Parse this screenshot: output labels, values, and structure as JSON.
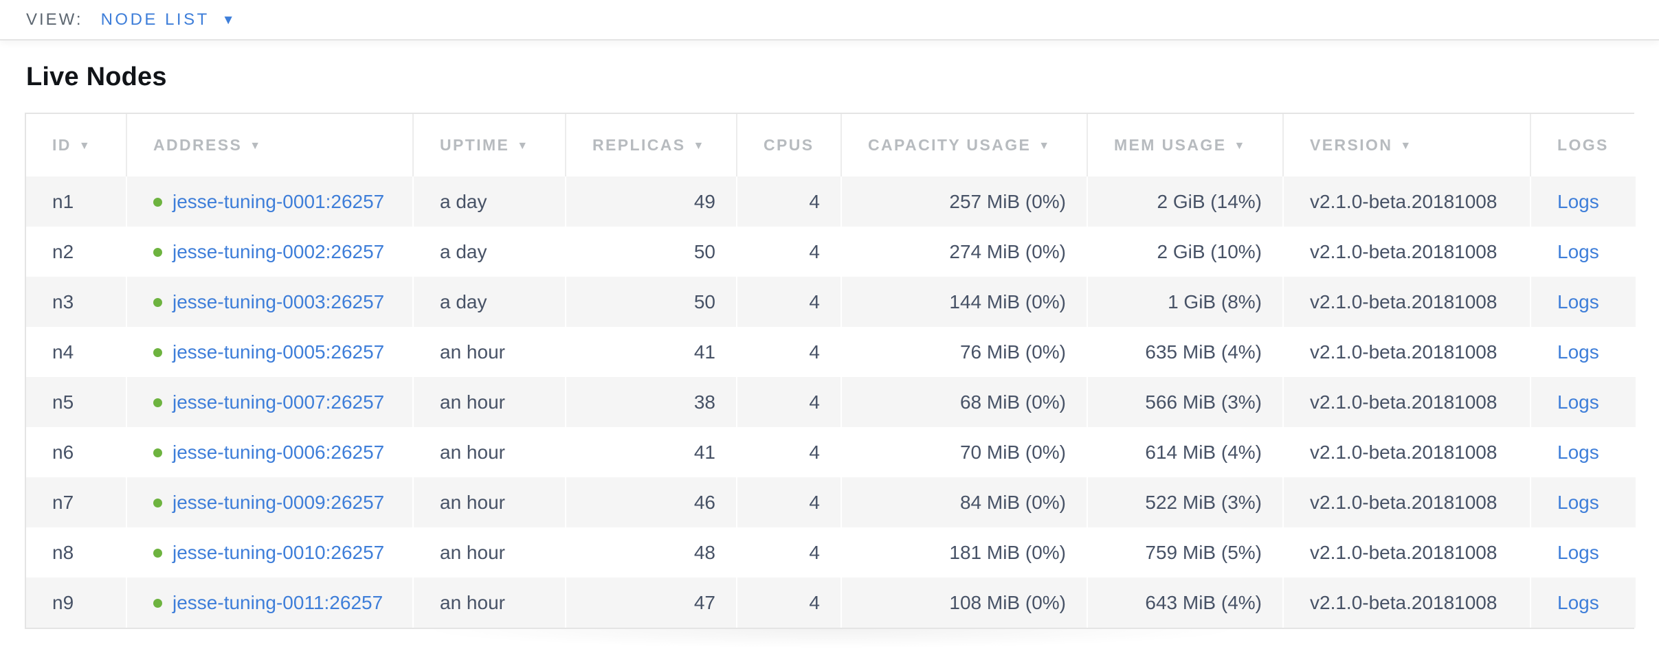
{
  "view_bar": {
    "label": "VIEW:",
    "selected": "NODE LIST"
  },
  "page": {
    "title": "Live Nodes"
  },
  "icons": {
    "sort_desc": "▼",
    "caret_down": "▼"
  },
  "colors": {
    "accent_blue": "#3e7ed9",
    "status_green": "#6db33f",
    "header_gray": "#b7bbbf",
    "cell_text": "#475266",
    "stripe_gray": "#f5f5f5"
  },
  "table": {
    "columns": [
      {
        "key": "id",
        "label": "ID",
        "sortable": true,
        "align": "left",
        "type": "text"
      },
      {
        "key": "address",
        "label": "ADDRESS",
        "sortable": true,
        "align": "left",
        "type": "node-link"
      },
      {
        "key": "uptime",
        "label": "UPTIME",
        "sortable": true,
        "align": "left",
        "type": "text"
      },
      {
        "key": "replicas",
        "label": "REPLICAS",
        "sortable": true,
        "align": "right",
        "type": "text"
      },
      {
        "key": "cpus",
        "label": "CPUS",
        "sortable": false,
        "align": "right",
        "type": "text"
      },
      {
        "key": "capacity",
        "label": "CAPACITY USAGE",
        "sortable": true,
        "align": "right",
        "type": "text"
      },
      {
        "key": "mem",
        "label": "MEM USAGE",
        "sortable": true,
        "align": "right",
        "type": "text"
      },
      {
        "key": "version",
        "label": "VERSION",
        "sortable": true,
        "align": "left",
        "type": "text"
      },
      {
        "key": "logs",
        "label": "LOGS",
        "sortable": false,
        "align": "left",
        "type": "link"
      }
    ],
    "rows": [
      {
        "id": "n1",
        "address": "jesse-tuning-0001:26257",
        "uptime": "a day",
        "replicas": "49",
        "cpus": "4",
        "capacity": "257 MiB (0%)",
        "mem": "2 GiB (14%)",
        "version": "v2.1.0-beta.20181008",
        "logs": "Logs"
      },
      {
        "id": "n2",
        "address": "jesse-tuning-0002:26257",
        "uptime": "a day",
        "replicas": "50",
        "cpus": "4",
        "capacity": "274 MiB (0%)",
        "mem": "2 GiB (10%)",
        "version": "v2.1.0-beta.20181008",
        "logs": "Logs"
      },
      {
        "id": "n3",
        "address": "jesse-tuning-0003:26257",
        "uptime": "a day",
        "replicas": "50",
        "cpus": "4",
        "capacity": "144 MiB (0%)",
        "mem": "1 GiB (8%)",
        "version": "v2.1.0-beta.20181008",
        "logs": "Logs"
      },
      {
        "id": "n4",
        "address": "jesse-tuning-0005:26257",
        "uptime": "an hour",
        "replicas": "41",
        "cpus": "4",
        "capacity": "76 MiB (0%)",
        "mem": "635 MiB (4%)",
        "version": "v2.1.0-beta.20181008",
        "logs": "Logs"
      },
      {
        "id": "n5",
        "address": "jesse-tuning-0007:26257",
        "uptime": "an hour",
        "replicas": "38",
        "cpus": "4",
        "capacity": "68 MiB (0%)",
        "mem": "566 MiB (3%)",
        "version": "v2.1.0-beta.20181008",
        "logs": "Logs"
      },
      {
        "id": "n6",
        "address": "jesse-tuning-0006:26257",
        "uptime": "an hour",
        "replicas": "41",
        "cpus": "4",
        "capacity": "70 MiB (0%)",
        "mem": "614 MiB (4%)",
        "version": "v2.1.0-beta.20181008",
        "logs": "Logs"
      },
      {
        "id": "n7",
        "address": "jesse-tuning-0009:26257",
        "uptime": "an hour",
        "replicas": "46",
        "cpus": "4",
        "capacity": "84 MiB (0%)",
        "mem": "522 MiB (3%)",
        "version": "v2.1.0-beta.20181008",
        "logs": "Logs"
      },
      {
        "id": "n8",
        "address": "jesse-tuning-0010:26257",
        "uptime": "an hour",
        "replicas": "48",
        "cpus": "4",
        "capacity": "181 MiB (0%)",
        "mem": "759 MiB (5%)",
        "version": "v2.1.0-beta.20181008",
        "logs": "Logs"
      },
      {
        "id": "n9",
        "address": "jesse-tuning-0011:26257",
        "uptime": "an hour",
        "replicas": "47",
        "cpus": "4",
        "capacity": "108 MiB (0%)",
        "mem": "643 MiB (4%)",
        "version": "v2.1.0-beta.20181008",
        "logs": "Logs"
      }
    ]
  }
}
